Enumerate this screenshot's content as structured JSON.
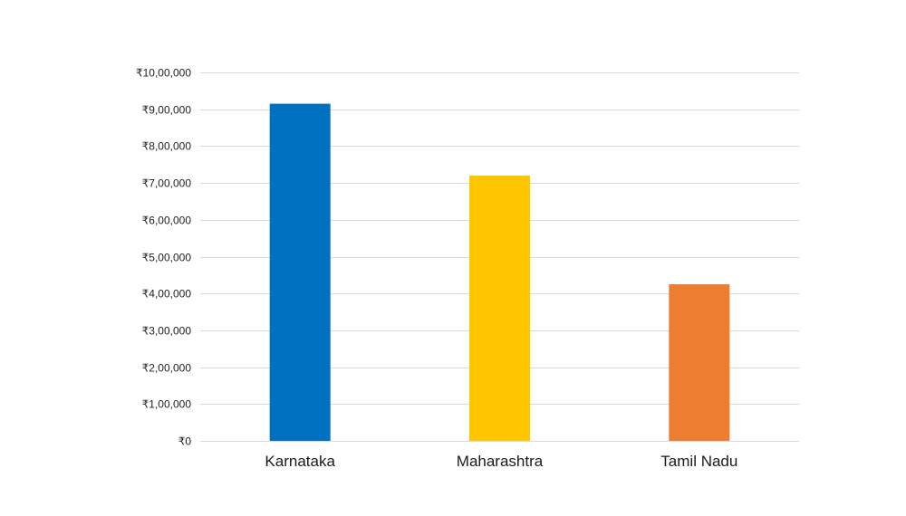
{
  "chart_data": {
    "type": "bar",
    "title": "",
    "xlabel": "",
    "ylabel": "",
    "categories": [
      "Karnataka",
      "Maharashtra",
      "Tamil Nadu"
    ],
    "values": [
      915000,
      720000,
      425000
    ],
    "colors": [
      "#0070C0",
      "#FFC600",
      "#ED7D31"
    ],
    "ylim": [
      0,
      1000000
    ],
    "y_ticks": [
      0,
      100000,
      200000,
      300000,
      400000,
      500000,
      600000,
      700000,
      800000,
      900000,
      1000000
    ],
    "y_tick_labels": [
      "₹0",
      "₹1,00,000",
      "₹2,00,000",
      "₹3,00,000",
      "₹4,00,000",
      "₹5,00,000",
      "₹6,00,000",
      "₹7,00,000",
      "₹8,00,000",
      "₹9,00,000",
      "₹10,00,000"
    ],
    "grid": true,
    "gridline_color": "#d9d9d9",
    "legend": "none"
  }
}
